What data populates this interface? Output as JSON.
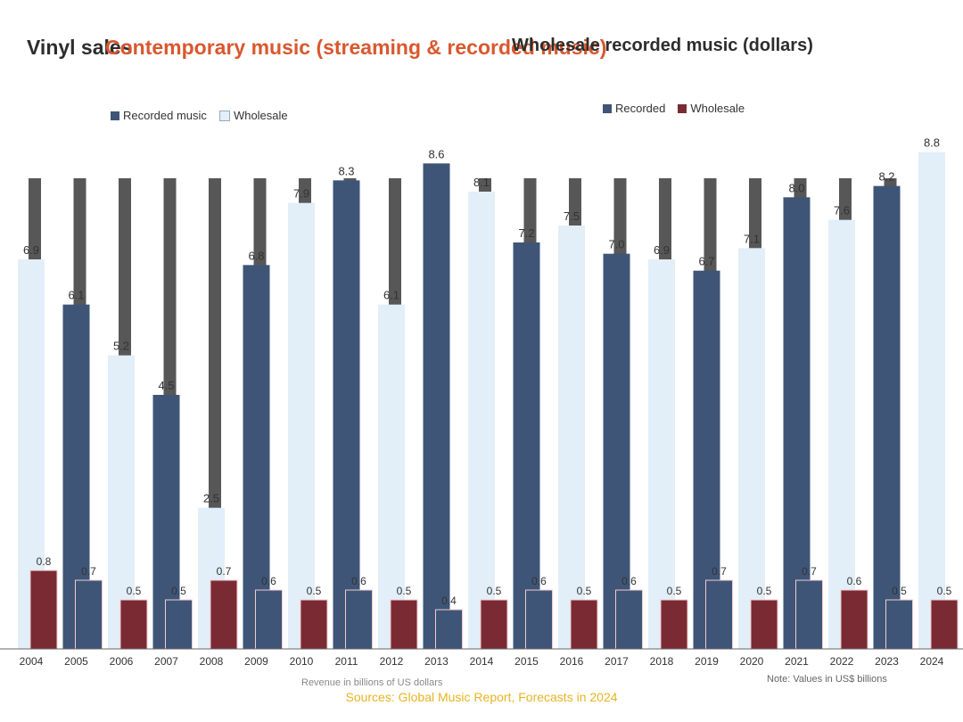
{
  "header": {
    "title_left": "Vinyl sales",
    "title_accent": "Contemporary music (streaming & recorded music)",
    "title_right": "Wholesale recorded music (dollars)"
  },
  "legend_left": [
    {
      "label": "Recorded music",
      "color": "#3f5577"
    },
    {
      "label": "Wholesale",
      "color": "#e2eef8"
    }
  ],
  "legend_right": [
    {
      "label": "Recorded",
      "color": "#3f5577"
    },
    {
      "label": "Wholesale",
      "color": "#7a2a32"
    }
  ],
  "footer": {
    "sub_note": "Revenue in billions of US dollars",
    "source": "Sources: Global Music Report, Forecasts in 2024",
    "note": "Note: Values in US$ billions"
  },
  "colors": {
    "dark_bar": "#3f5577",
    "light_bar": "#e2eef8",
    "red_bar": "#7a2a32",
    "stripe": "#3a3a3a"
  },
  "chart_data": {
    "type": "bar",
    "categories": [
      "2004",
      "2005",
      "2006",
      "2007",
      "2008",
      "2009",
      "2010",
      "2011",
      "2012",
      "2013",
      "2014",
      "2015",
      "2016",
      "2017",
      "2018",
      "2019",
      "2020",
      "2021",
      "2022",
      "2023",
      "2024"
    ],
    "series": [
      {
        "name": "Recorded music",
        "values": [
          6.9,
          6.1,
          5.2,
          4.5,
          2.5,
          6.8,
          7.9,
          8.3,
          6.1,
          8.6,
          8.1,
          7.2,
          7.5,
          7.0,
          6.9,
          6.7,
          7.1,
          8.0,
          7.6,
          8.2,
          8.8
        ]
      },
      {
        "name": "Wholesale",
        "values": [
          0.8,
          0.7,
          0.5,
          0.5,
          0.7,
          0.6,
          0.5,
          0.6,
          0.5,
          0.4,
          0.5,
          0.6,
          0.5,
          0.6,
          0.5,
          0.7,
          0.5,
          0.7,
          0.6,
          0.5,
          0.5
        ]
      }
    ]
  }
}
